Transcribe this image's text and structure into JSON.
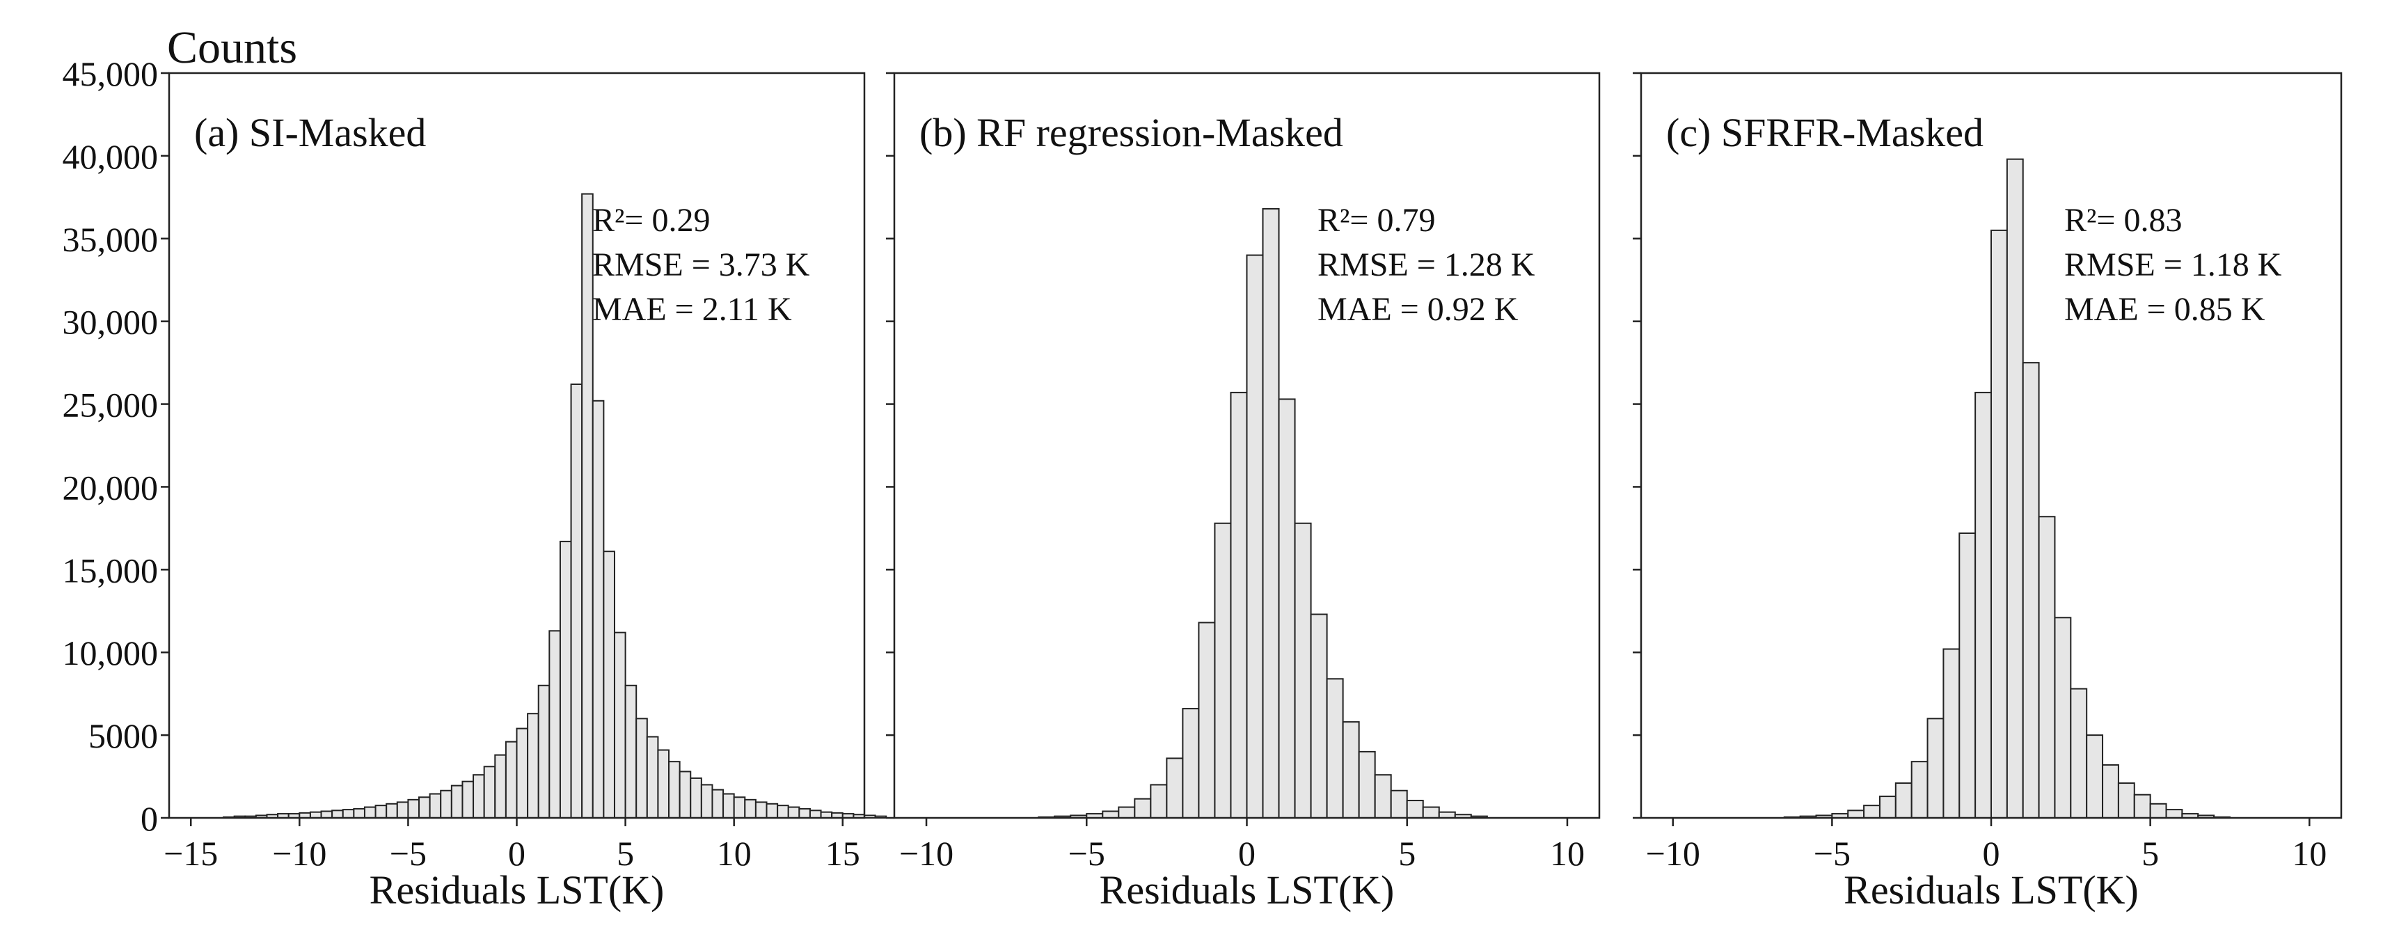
{
  "chart_data": [
    {
      "type": "bar",
      "title": "(a) SI-Masked",
      "ylabel": "Counts",
      "xlabel": "Residuals LST(K)",
      "ylim": [
        0,
        45000
      ],
      "xlim": [
        -16,
        16
      ],
      "bin_width": 0.5,
      "y_ticks": [
        0,
        5000,
        10000,
        15000,
        20000,
        25000,
        30000,
        35000,
        40000,
        45000
      ],
      "y_tick_labels": [
        "0",
        "5000",
        "10,000",
        "15,000",
        "20,000",
        "25,000",
        "30,000",
        "35,000",
        "40,000",
        "45,000"
      ],
      "x_ticks": [
        -15,
        -10,
        -5,
        0,
        5,
        10,
        15
      ],
      "x_tick_labels": [
        "−15",
        "−10",
        "−5",
        "0",
        "5",
        "10",
        "15"
      ],
      "stats": [
        "R²= 0.29",
        "RMSE = 3.73 K",
        "MAE = 2.11 K"
      ],
      "bin_start": -15,
      "values": [
        0,
        0,
        0,
        50,
        100,
        100,
        150,
        200,
        250,
        250,
        300,
        350,
        400,
        450,
        500,
        550,
        650,
        750,
        850,
        950,
        1100,
        1250,
        1450,
        1650,
        1950,
        2200,
        2600,
        3100,
        3800,
        4600,
        5400,
        6300,
        8000,
        11300,
        16700,
        26200,
        37700,
        25200,
        16100,
        11200,
        8000,
        6000,
        4900,
        4100,
        3400,
        2800,
        2400,
        2000,
        1700,
        1450,
        1250,
        1100,
        950,
        850,
        750,
        650,
        550,
        450,
        350,
        300,
        250,
        200,
        150,
        100,
        0,
        0,
        0,
        0,
        0,
        0,
        0
      ]
    },
    {
      "type": "bar",
      "title": "(b) RF regression-Masked",
      "xlabel": "Residuals LST(K)",
      "ylim": [
        0,
        45000
      ],
      "xlim": [
        -11,
        11
      ],
      "bin_width": 0.5,
      "x_ticks": [
        -10,
        -5,
        0,
        5,
        10
      ],
      "x_tick_labels": [
        "−10",
        "−5",
        "0",
        "5",
        "10"
      ],
      "stats": [
        "R²= 0.79",
        "RMSE = 1.28 K",
        "MAE = 0.92 K"
      ],
      "bin_start": -6.5,
      "values": [
        50,
        100,
        150,
        250,
        400,
        650,
        1150,
        2000,
        3600,
        6600,
        11800,
        17800,
        25700,
        34000,
        36800,
        25300,
        17800,
        12300,
        8400,
        5800,
        4000,
        2600,
        1650,
        1050,
        650,
        350,
        200,
        100
      ]
    },
    {
      "type": "bar",
      "title": "(c) SFRFR-Masked",
      "xlabel": "Residuals LST(K)",
      "ylim": [
        0,
        45000
      ],
      "xlim": [
        -11,
        11
      ],
      "bin_width": 0.5,
      "x_ticks": [
        -10,
        -5,
        0,
        5,
        10
      ],
      "x_tick_labels": [
        "−10",
        "−5",
        "0",
        "5",
        "10"
      ],
      "stats": [
        "R²= 0.83",
        "RMSE = 1.18 K",
        "MAE = 0.85 K"
      ],
      "bin_start": -6.5,
      "values": [
        50,
        100,
        150,
        250,
        450,
        750,
        1300,
        2100,
        3400,
        6000,
        10200,
        17200,
        25700,
        35500,
        39800,
        27500,
        18200,
        12100,
        7800,
        5000,
        3200,
        2100,
        1400,
        850,
        500,
        250,
        150,
        50
      ]
    }
  ]
}
